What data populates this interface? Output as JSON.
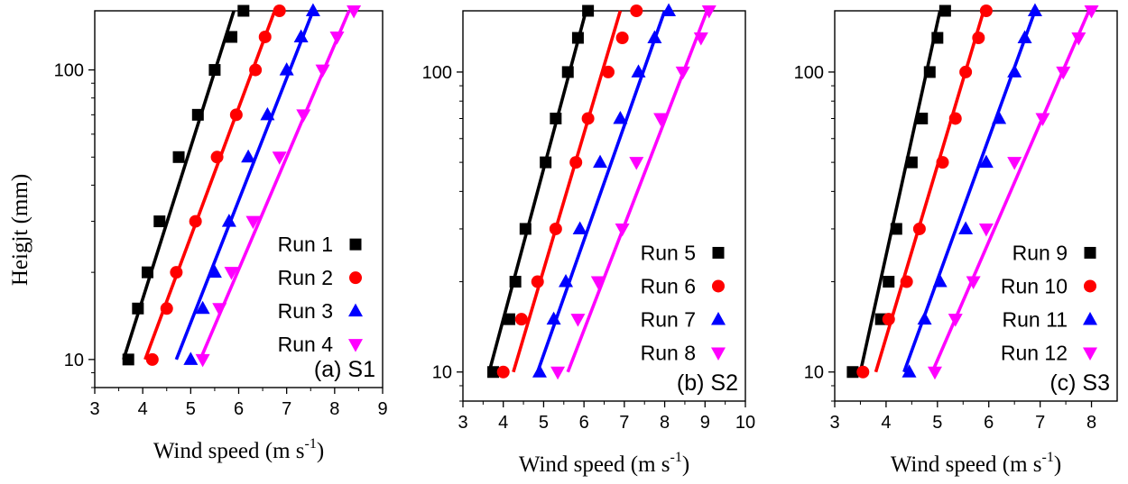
{
  "y_axis_title": "Heigjt (mm)",
  "chart_data": [
    {
      "type": "scatter",
      "panel_label": "(a) S1",
      "xlabel_main": "Wind speed (m s",
      "xlabel_exp": "-1",
      "xlabel_close": ")",
      "xlim": [
        3,
        9
      ],
      "x_ticks": [
        "3",
        "4",
        "5",
        "6",
        "7",
        "8",
        "9"
      ],
      "ylim": [
        8,
        160
      ],
      "y_scale": "log",
      "y_ticks": [
        "10",
        "100"
      ],
      "legend_placement": "center-right",
      "series": [
        {
          "name": "Run 1",
          "marker": "square",
          "color": "#000000",
          "x": [
            3.7,
            3.9,
            4.1,
            4.35,
            4.75,
            5.15,
            5.5,
            5.85,
            6.1
          ],
          "y": [
            10,
            15,
            20,
            30,
            50,
            70,
            100,
            130,
            160
          ],
          "fit": [
            [
              3.6,
              10
            ],
            [
              5.9,
              160
            ]
          ]
        },
        {
          "name": "Run 2",
          "marker": "circle",
          "color": "#ff0000",
          "x": [
            4.2,
            4.5,
            4.7,
            5.1,
            5.55,
            5.95,
            6.35,
            6.55,
            6.85
          ],
          "y": [
            10,
            15,
            20,
            30,
            50,
            70,
            100,
            130,
            160
          ],
          "fit": [
            [
              4.05,
              10
            ],
            [
              6.75,
              160
            ]
          ]
        },
        {
          "name": "Run 3",
          "marker": "triangle-up",
          "color": "#0000ff",
          "x": [
            5.0,
            5.25,
            5.5,
            5.8,
            6.2,
            6.6,
            7.0,
            7.3,
            7.55
          ],
          "y": [
            10,
            15,
            20,
            30,
            50,
            70,
            100,
            130,
            160
          ],
          "fit": [
            [
              4.7,
              10
            ],
            [
              7.55,
              160
            ]
          ]
        },
        {
          "name": "Run 4",
          "marker": "triangle-down",
          "color": "#ff00ff",
          "x": [
            5.25,
            5.6,
            5.85,
            6.3,
            6.85,
            7.35,
            7.75,
            8.05,
            8.4
          ],
          "y": [
            10,
            15,
            20,
            30,
            50,
            70,
            100,
            130,
            160
          ],
          "fit": [
            [
              5.2,
              10
            ],
            [
              8.3,
              160
            ]
          ]
        }
      ]
    },
    {
      "type": "scatter",
      "panel_label": "(b) S2",
      "xlabel_main": "Wind speed (m s",
      "xlabel_exp": "-1",
      "xlabel_close": ")",
      "xlim": [
        3,
        10
      ],
      "x_ticks": [
        "3",
        "4",
        "5",
        "6",
        "7",
        "8",
        "9",
        "10"
      ],
      "ylim": [
        8,
        160
      ],
      "y_scale": "log",
      "y_ticks": [
        "10",
        "100"
      ],
      "legend_placement": "center-right",
      "series": [
        {
          "name": "Run 5",
          "marker": "square",
          "color": "#000000",
          "x": [
            3.75,
            4.15,
            4.3,
            4.55,
            5.05,
            5.3,
            5.6,
            5.85,
            6.1
          ],
          "y": [
            10,
            15,
            20,
            30,
            50,
            70,
            100,
            130,
            160
          ],
          "fit": [
            [
              3.65,
              10
            ],
            [
              6.05,
              160
            ]
          ]
        },
        {
          "name": "Run 6",
          "marker": "circle",
          "color": "#ff0000",
          "x": [
            4.0,
            4.45,
            4.85,
            5.3,
            5.8,
            6.1,
            6.6,
            6.95,
            7.3
          ],
          "y": [
            10,
            15,
            20,
            30,
            50,
            70,
            100,
            130,
            160
          ],
          "fit": [
            [
              4.25,
              10
            ],
            [
              6.9,
              160
            ]
          ]
        },
        {
          "name": "Run 7",
          "marker": "triangle-up",
          "color": "#0000ff",
          "x": [
            4.9,
            5.25,
            5.55,
            5.9,
            6.4,
            6.9,
            7.35,
            7.75,
            8.1
          ],
          "y": [
            10,
            15,
            20,
            30,
            50,
            70,
            100,
            130,
            160
          ],
          "fit": [
            [
              4.85,
              10
            ],
            [
              8.0,
              160
            ]
          ]
        },
        {
          "name": "Run 8",
          "marker": "triangle-down",
          "color": "#ff00ff",
          "x": [
            5.35,
            5.85,
            6.35,
            6.95,
            7.3,
            7.9,
            8.45,
            8.9,
            9.1
          ],
          "y": [
            10,
            15,
            20,
            30,
            50,
            70,
            100,
            130,
            160
          ],
          "fit": [
            [
              5.6,
              10
            ],
            [
              9.05,
              160
            ]
          ]
        }
      ]
    },
    {
      "type": "scatter",
      "panel_label": "(c) S3",
      "xlabel_main": "Wind speed (m s",
      "xlabel_exp": "-1",
      "xlabel_close": ")",
      "xlim": [
        3,
        8.5
      ],
      "x_ticks": [
        "3",
        "4",
        "5",
        "6",
        "7",
        "8"
      ],
      "ylim": [
        8,
        160
      ],
      "y_scale": "log",
      "y_ticks": [
        "10",
        "100"
      ],
      "legend_placement": "center-right",
      "series": [
        {
          "name": "Run  9",
          "marker": "square",
          "color": "#000000",
          "x": [
            3.35,
            3.9,
            4.05,
            4.2,
            4.5,
            4.7,
            4.85,
            5.0,
            5.15
          ],
          "y": [
            10,
            15,
            20,
            30,
            50,
            70,
            100,
            130,
            160
          ],
          "fit": [
            [
              3.5,
              10
            ],
            [
              5.05,
              160
            ]
          ]
        },
        {
          "name": "Run 10",
          "marker": "circle",
          "color": "#ff0000",
          "x": [
            3.55,
            4.05,
            4.4,
            4.65,
            5.1,
            5.35,
            5.55,
            5.8,
            5.95
          ],
          "y": [
            10,
            15,
            20,
            30,
            50,
            70,
            100,
            130,
            160
          ],
          "fit": [
            [
              3.8,
              10
            ],
            [
              5.9,
              160
            ]
          ]
        },
        {
          "name": "Run 11",
          "marker": "triangle-up",
          "color": "#0000ff",
          "x": [
            4.45,
            4.75,
            5.05,
            5.55,
            5.95,
            6.2,
            6.5,
            6.7,
            6.9
          ],
          "y": [
            10,
            15,
            20,
            30,
            50,
            70,
            100,
            130,
            160
          ],
          "fit": [
            [
              4.35,
              10
            ],
            [
              6.9,
              160
            ]
          ]
        },
        {
          "name": "Run 12",
          "marker": "triangle-down",
          "color": "#ff00ff",
          "x": [
            4.95,
            5.35,
            5.7,
            5.95,
            6.5,
            7.05,
            7.45,
            7.75,
            8.0
          ],
          "y": [
            10,
            15,
            20,
            30,
            50,
            70,
            100,
            130,
            160
          ],
          "fit": [
            [
              4.9,
              10
            ],
            [
              7.95,
              160
            ]
          ]
        }
      ]
    }
  ]
}
